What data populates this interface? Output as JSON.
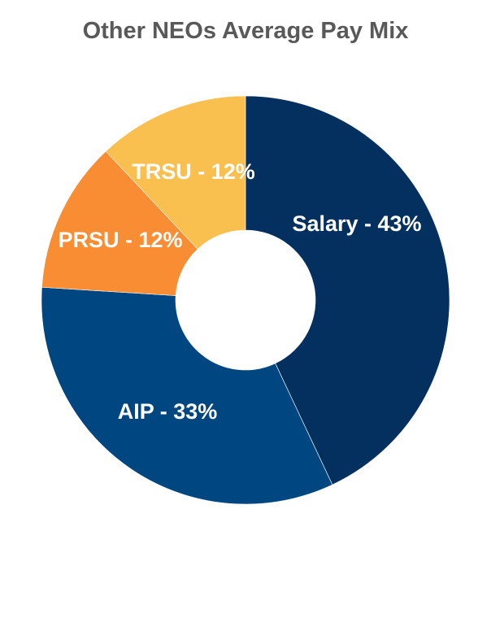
{
  "chart_data": {
    "type": "pie",
    "title": "Other NEOs Average Pay Mix",
    "donut": true,
    "slices": [
      {
        "category": "Salary",
        "value": 43,
        "label": "Salary - 43%",
        "color": "#03305f"
      },
      {
        "category": "AIP",
        "value": 33,
        "label": "AIP - 33%",
        "color": "#004680"
      },
      {
        "category": "PRSU",
        "value": 12,
        "label": "PRSU - 12%",
        "color": "#f88d33"
      },
      {
        "category": "TRSU",
        "value": 12,
        "label": "TRSU - 12%",
        "color": "#f9c04f"
      }
    ],
    "legend": "none"
  }
}
